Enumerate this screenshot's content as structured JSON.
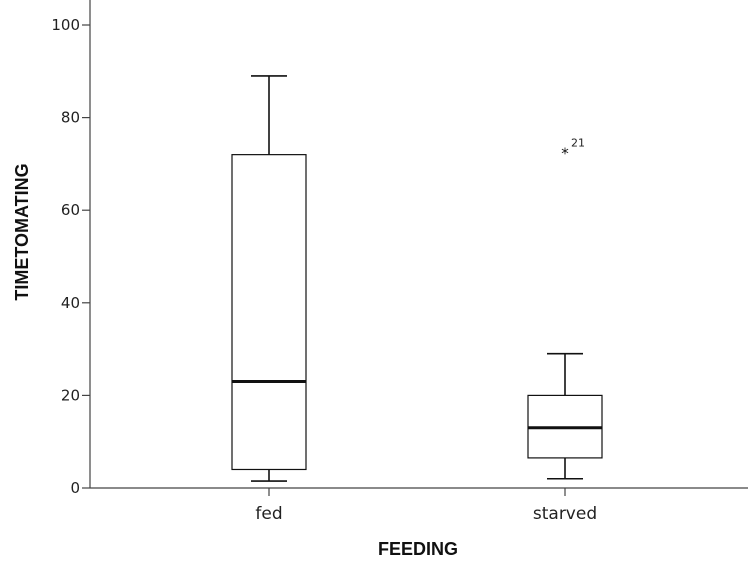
{
  "chart_data": {
    "type": "box",
    "xlabel": "FEEDING",
    "ylabel": "TIMETOMATING",
    "ylim": [
      0,
      100
    ],
    "yticks": [
      0,
      20,
      40,
      60,
      80,
      100
    ],
    "grid": false,
    "categories": [
      "fed",
      "starved"
    ],
    "boxes": [
      {
        "category": "fed",
        "whisker_low": 1.5,
        "q1": 4,
        "median": 23,
        "q3": 72,
        "whisker_high": 89,
        "outliers": []
      },
      {
        "category": "starved",
        "whisker_low": 2,
        "q1": 6.5,
        "median": 13,
        "q3": 20,
        "whisker_high": 29,
        "outliers": [
          {
            "value": 72.5,
            "label": "21",
            "marker": "*"
          }
        ]
      }
    ]
  }
}
